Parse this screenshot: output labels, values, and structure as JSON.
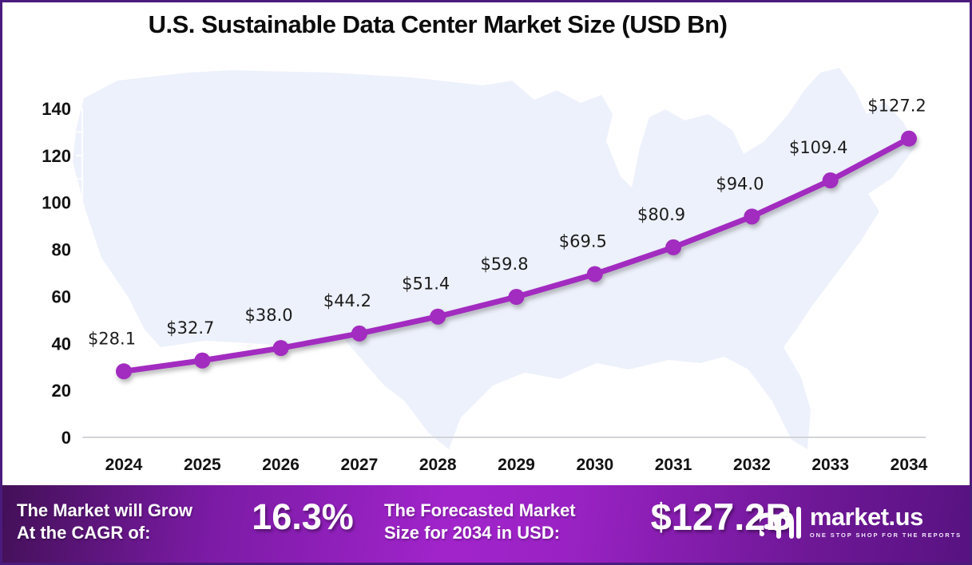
{
  "title": "U.S. Sustainable Data Center Market Size (USD Bn)",
  "chart_data": {
    "type": "line",
    "categories": [
      2024,
      2025,
      2026,
      2027,
      2028,
      2029,
      2030,
      2031,
      2032,
      2033,
      2034
    ],
    "series": [
      {
        "name": "U.S. Sustainable Data Center Market Size",
        "values": [
          28.1,
          32.7,
          38.0,
          44.2,
          51.4,
          59.8,
          69.5,
          80.9,
          94.0,
          109.4,
          127.2
        ]
      }
    ],
    "point_labels": [
      "$28.1",
      "$32.7",
      "$38.0",
      "$44.2",
      "$51.4",
      "$59.8",
      "$69.5",
      "$80.9",
      "$94.0",
      "$109.4",
      "$127.2"
    ],
    "title": "U.S. Sustainable Data Center Market Size (USD Bn)",
    "xlabel": "",
    "ylabel": "",
    "ylim": [
      0,
      150
    ],
    "yticks": [
      0,
      20,
      40,
      60,
      80,
      100,
      120,
      140
    ],
    "grid": false,
    "legend": "none",
    "line_color": "#a22bc0",
    "marker_color": "#a22bc0",
    "axis_line_color": "#d2d4d9",
    "background_shape": "us-map-silhouette",
    "background_fill": "#edf1fb"
  },
  "footer": {
    "cagr_label_line1": "The Market will Grow",
    "cagr_label_line2": "At the CAGR of:",
    "cagr_value": "16.3%",
    "forecast_label_line1": "The Forecasted Market",
    "forecast_label_line2": "Size for 2034 in USD:",
    "forecast_value": "$127.2B",
    "brand_name": "market.us",
    "brand_tagline": "ONE STOP SHOP FOR THE REPORTS"
  }
}
